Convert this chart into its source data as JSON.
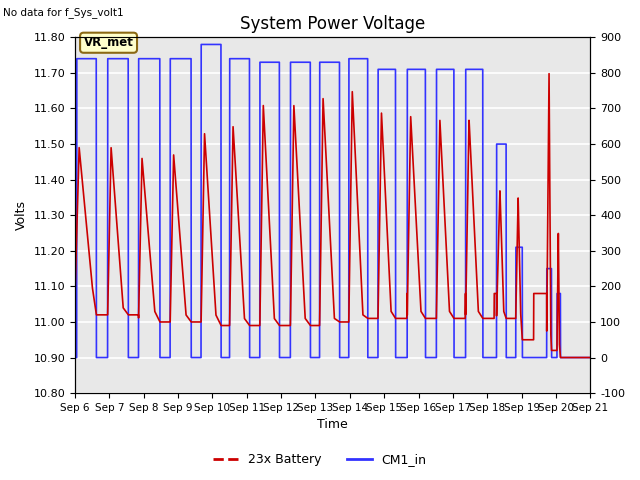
{
  "title": "System Power Voltage",
  "no_data_label": "No data for f_Sys_volt1",
  "xlabel": "Time",
  "ylabel_left": "Volts",
  "ylim_left": [
    10.8,
    11.8
  ],
  "ylim_right": [
    -100,
    900
  ],
  "x_start": 6,
  "x_end": 21,
  "x_ticks": [
    6,
    7,
    8,
    9,
    10,
    11,
    12,
    13,
    14,
    15,
    16,
    17,
    18,
    19,
    20,
    21
  ],
  "x_tick_labels": [
    "Sep 6",
    "Sep 7",
    "Sep 8",
    "Sep 9",
    "Sep 10",
    "Sep 11",
    "Sep 12",
    "Sep 13",
    "Sep 14",
    "Sep 15",
    "Sep 16",
    "Sep 17",
    "Sep 18",
    "Sep 19",
    "Sep 20",
    "Sep 21"
  ],
  "y_ticks_left": [
    10.8,
    10.9,
    11.0,
    11.1,
    11.2,
    11.3,
    11.4,
    11.5,
    11.6,
    11.7,
    11.8
  ],
  "y_ticks_right": [
    -100,
    0,
    100,
    200,
    300,
    400,
    500,
    600,
    700,
    800,
    900
  ],
  "vr_met_box": {
    "text": "VR_met",
    "facecolor": "#FFFFCC",
    "edgecolor": "#8B6914"
  },
  "legend_entries": [
    {
      "label": "23x Battery",
      "color": "#CC0000",
      "linestyle": "--"
    },
    {
      "label": "CM1_in",
      "color": "#3333FF",
      "linestyle": "-"
    }
  ],
  "bg_color": "#E8E8E8",
  "grid_color": "white",
  "red_color": "#CC0000",
  "blue_color": "#3333FF",
  "blue_on_intervals": [
    [
      6.05,
      6.62,
      11.74
    ],
    [
      6.95,
      7.55,
      11.74
    ],
    [
      7.85,
      8.47,
      11.74
    ],
    [
      8.77,
      9.38,
      11.74
    ],
    [
      9.67,
      10.25,
      11.78
    ],
    [
      10.5,
      11.08,
      11.74
    ],
    [
      11.38,
      11.95,
      11.73
    ],
    [
      12.27,
      12.85,
      11.73
    ],
    [
      13.12,
      13.7,
      11.73
    ],
    [
      13.97,
      14.52,
      11.74
    ],
    [
      14.82,
      15.33,
      11.71
    ],
    [
      15.67,
      16.2,
      11.71
    ],
    [
      16.52,
      17.03,
      11.71
    ],
    [
      17.37,
      17.87,
      11.71
    ],
    [
      18.27,
      18.55,
      11.5
    ],
    [
      18.83,
      19.02,
      11.21
    ],
    [
      19.73,
      19.87,
      11.15
    ],
    [
      20.03,
      20.13,
      11.08
    ]
  ],
  "red_cycles": [
    [
      6.0,
      6.12,
      6.5,
      6.62,
      11.08,
      11.49,
      11.02
    ],
    [
      6.95,
      7.05,
      7.4,
      7.55,
      11.02,
      11.49,
      11.02
    ],
    [
      7.85,
      7.95,
      8.32,
      8.47,
      11.01,
      11.46,
      11.0
    ],
    [
      8.77,
      8.87,
      9.23,
      9.38,
      11.0,
      11.47,
      11.0
    ],
    [
      9.67,
      9.77,
      10.1,
      10.25,
      11.0,
      11.53,
      10.99
    ],
    [
      10.5,
      10.6,
      10.93,
      11.08,
      10.99,
      11.55,
      10.99
    ],
    [
      11.38,
      11.48,
      11.8,
      11.95,
      10.99,
      11.61,
      10.99
    ],
    [
      12.27,
      12.37,
      12.7,
      12.85,
      10.99,
      11.61,
      10.99
    ],
    [
      13.12,
      13.22,
      13.55,
      13.7,
      10.99,
      11.63,
      11.0
    ],
    [
      13.97,
      14.07,
      14.38,
      14.52,
      11.0,
      11.65,
      11.01
    ],
    [
      14.82,
      14.92,
      15.2,
      15.33,
      11.01,
      11.59,
      11.01
    ],
    [
      15.67,
      15.77,
      16.07,
      16.2,
      11.01,
      11.58,
      11.01
    ],
    [
      16.52,
      16.62,
      16.9,
      17.03,
      11.01,
      11.57,
      11.01
    ],
    [
      17.37,
      17.47,
      17.74,
      17.87,
      11.01,
      11.57,
      11.01
    ],
    [
      18.27,
      18.37,
      18.48,
      18.55,
      11.01,
      11.37,
      11.01
    ],
    [
      18.83,
      18.9,
      18.97,
      19.02,
      11.01,
      11.35,
      10.95
    ],
    [
      19.73,
      19.8,
      19.85,
      19.87,
      10.95,
      11.7,
      10.92
    ],
    [
      20.03,
      20.07,
      20.1,
      20.13,
      10.92,
      11.25,
      10.9
    ]
  ]
}
